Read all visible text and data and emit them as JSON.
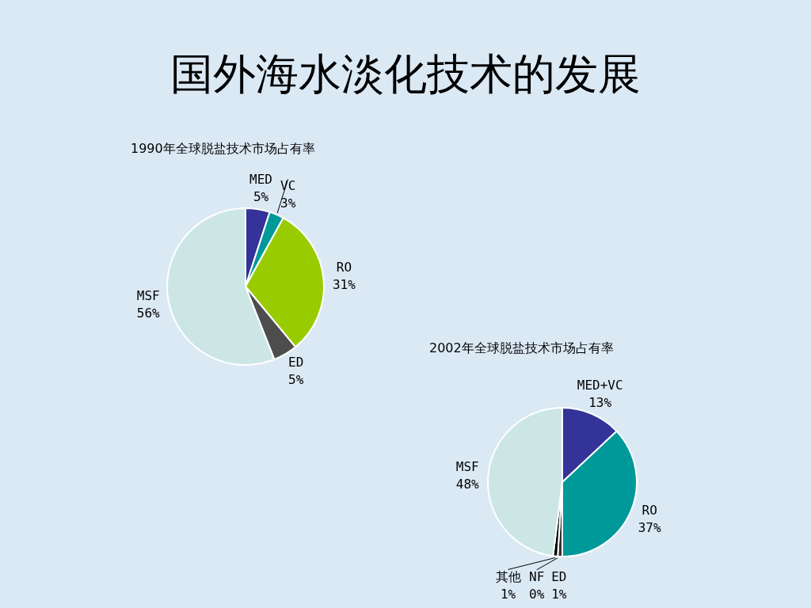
{
  "chart_data": [
    {
      "type": "pie",
      "title": "国外海水淡化技术的发展",
      "subtitle": "1990年全球脱盐技术市场占有率",
      "categories": [
        "MED",
        "VC",
        "RO",
        "ED",
        "MSF"
      ],
      "values": [
        5,
        3,
        31,
        5,
        56
      ],
      "value_labels": [
        "5%",
        "3%",
        "31%",
        "5%",
        "56%"
      ],
      "colors": [
        "#333399",
        "#009999",
        "#99cc00",
        "#4d4d4d",
        "#cce6e6"
      ],
      "legend": false
    },
    {
      "type": "pie",
      "title": "2002年全球脱盐技术市场占有率",
      "categories": [
        "MED+VC",
        "RO",
        "ED",
        "NF",
        "其他",
        "MSF"
      ],
      "values": [
        13,
        37,
        1,
        0,
        1,
        48
      ],
      "value_labels": [
        "13%",
        "37%",
        "1%",
        "0%",
        "1%",
        "48%"
      ],
      "colors": [
        "#333399",
        "#009999",
        "#333333",
        "#808080",
        "#000000",
        "#cce6e6"
      ],
      "legend": false
    }
  ]
}
